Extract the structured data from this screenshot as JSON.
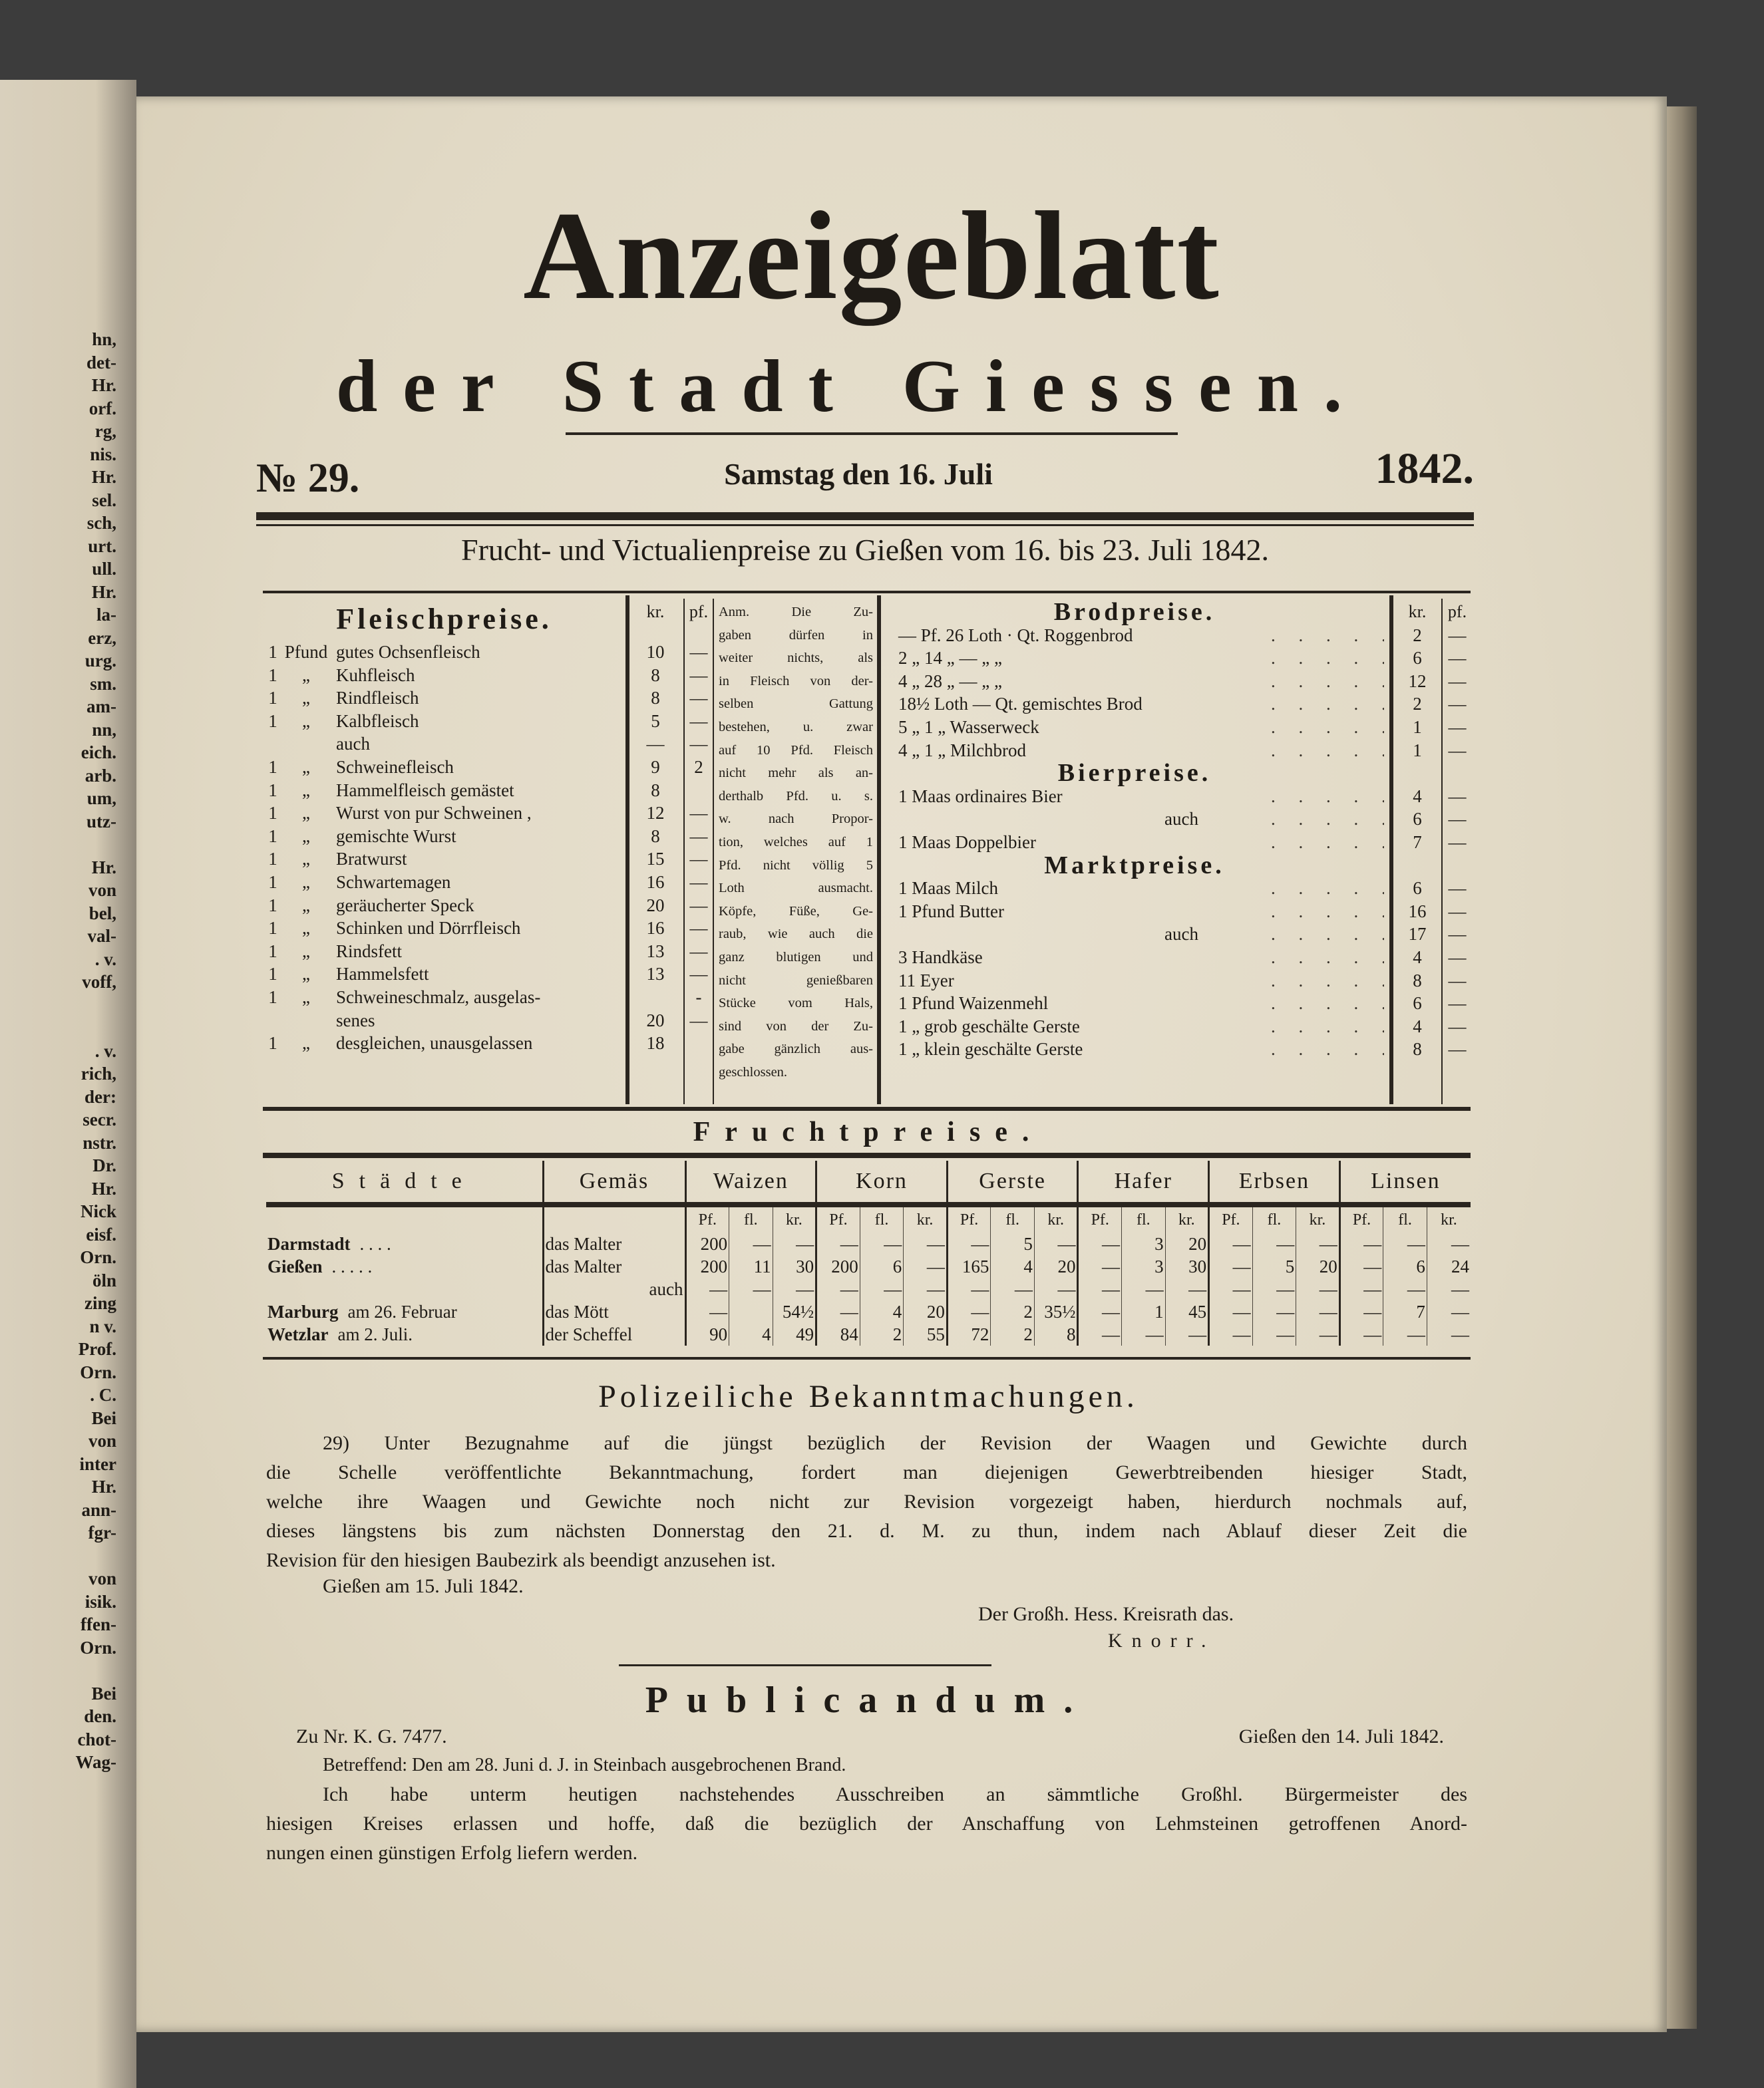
{
  "left_page_fragments": [
    "hn,",
    "det-",
    "Hr.",
    "orf.",
    "rg,",
    "nis.",
    "Hr.",
    "sel.",
    "sch,",
    "urt.",
    "ull.",
    "Hr.",
    "la-",
    "erz,",
    "urg.",
    "sm.",
    "am-",
    "nn,",
    "eich.",
    "arb.",
    "um,",
    "utz-",
    "",
    "Hr.",
    "von",
    "bel,",
    "val-",
    ". v.",
    "voff,",
    "",
    "",
    ". v.",
    "rich,",
    "der:",
    "secr.",
    "nstr.",
    "Dr.",
    "Hr.",
    "Nick",
    "eisf.",
    "Orn.",
    "öln",
    "zing",
    "n v.",
    "Prof.",
    "Orn.",
    ". C.",
    "Bei",
    "von",
    "inter",
    "Hr.",
    "ann-",
    "fgr-",
    "",
    "von",
    "isik.",
    "ffen-",
    "Orn.",
    "",
    "Bei",
    "den.",
    "chot-",
    "Wag-"
  ],
  "masthead": {
    "title": "Anzeigeblatt",
    "subtitle": "der Stadt Giessen.",
    "number": "№ 29.",
    "date": "Samstag den 16. Juli",
    "year": "1842."
  },
  "prices_heading": "Frucht- und Victualienpreise zu Gießen vom 16. bis 23. Juli 1842.",
  "meat": {
    "heading": "Fleischpreise.",
    "col_kr": "kr.",
    "col_pf": "pf.",
    "rows": [
      {
        "qty": "1",
        "unit": "Pfund",
        "item": "gutes Ochsenfleisch",
        "kr": "10",
        "pf": "—"
      },
      {
        "qty": "1",
        "unit": "„",
        "item": "Kuhfleisch",
        "kr": "8",
        "pf": "—"
      },
      {
        "qty": "1",
        "unit": "„",
        "item": "Rindfleisch",
        "kr": "8",
        "pf": "—"
      },
      {
        "qty": "1",
        "unit": "„",
        "item": "Kalbfleisch",
        "kr": "5",
        "pf": "—"
      },
      {
        "qty": "",
        "unit": "",
        "item": "auch",
        "kr": "—",
        "pf": "—"
      },
      {
        "qty": "1",
        "unit": "„",
        "item": "Schweinefleisch",
        "kr": "9",
        "pf": "2"
      },
      {
        "qty": "1",
        "unit": "„",
        "item": "Hammelfleisch gemästet",
        "kr": "8",
        "pf": ""
      },
      {
        "qty": "1",
        "unit": "„",
        "item": "Wurst von pur Schweinen ,",
        "kr": "12",
        "pf": "—"
      },
      {
        "qty": "1",
        "unit": "„",
        "item": "gemischte Wurst",
        "kr": "8",
        "pf": "—"
      },
      {
        "qty": "1",
        "unit": "„",
        "item": "Bratwurst",
        "kr": "15",
        "pf": "—"
      },
      {
        "qty": "1",
        "unit": "„",
        "item": "Schwartemagen",
        "kr": "16",
        "pf": "—"
      },
      {
        "qty": "1",
        "unit": "„",
        "item": "geräucherter Speck",
        "kr": "20",
        "pf": "—"
      },
      {
        "qty": "1",
        "unit": "„",
        "item": "Schinken und Dörrfleisch",
        "kr": "16",
        "pf": "—"
      },
      {
        "qty": "1",
        "unit": "„",
        "item": "Rindsfett",
        "kr": "13",
        "pf": "—"
      },
      {
        "qty": "1",
        "unit": "„",
        "item": "Hammelsfett",
        "kr": "13",
        "pf": "—"
      },
      {
        "qty": "1",
        "unit": "„",
        "item": "Schweineschmalz, ausgelas-",
        "kr": "",
        "pf": "-"
      },
      {
        "qty": "",
        "unit": "",
        "item": "senes",
        "kr": "20",
        "pf": "—"
      },
      {
        "qty": "1",
        "unit": "„",
        "item": "desgleichen, unausgelassen",
        "kr": "18",
        "pf": ""
      }
    ]
  },
  "note_lines": [
    "Anm. Die Zu-",
    "gaben dürfen in",
    "weiter nichts, als",
    "in Fleisch von der-",
    "selben Gattung",
    "bestehen, u. zwar",
    "auf 10 Pfd. Fleisch",
    "nicht mehr als an-",
    "derthalb Pfd. u. s.",
    "w. nach Propor-",
    "tion, welches auf 1",
    "Pfd. nicht völlig 5",
    "Loth ausmacht.",
    "Köpfe, Füße, Ge-",
    "raub, wie auch die",
    "ganz blutigen und",
    "nicht genießbaren",
    "Stücke vom Hals,",
    "sind von der Zu-",
    "gabe gänzlich aus-",
    "geschlossen."
  ],
  "right_prices": {
    "col_kr": "kr.",
    "col_pf": "pf.",
    "rows": [
      {
        "heading": "Brodpreise."
      },
      {
        "item": "— Pf. 26 Loth · Qt. Roggenbrod",
        "kr": "2",
        "pf": "—"
      },
      {
        "item": "2 „ 14 „ — „ „",
        "kr": "6",
        "pf": "—"
      },
      {
        "item": "4 „ 28 „ — „ „",
        "kr": "12",
        "pf": "—"
      },
      {
        "item": "18½ Loth — Qt. gemischtes Brod",
        "kr": "2",
        "pf": "—"
      },
      {
        "item": "5 „ 1 „ Wasserweck",
        "kr": "1",
        "pf": "—"
      },
      {
        "item": "4 „ 1 „ Milchbrod",
        "kr": "1",
        "pf": "—"
      },
      {
        "heading": "Bierpreise."
      },
      {
        "item": "1 Maas ordinaires Bier",
        "kr": "4",
        "pf": "—"
      },
      {
        "item": "auch",
        "kr": "6",
        "pf": "—",
        "indent": true
      },
      {
        "item": "1 Maas Doppelbier",
        "kr": "7",
        "pf": "—"
      },
      {
        "heading": "Marktpreise."
      },
      {
        "item": "1 Maas Milch",
        "kr": "6",
        "pf": "—"
      },
      {
        "item": "1 Pfund Butter",
        "kr": "16",
        "pf": "—"
      },
      {
        "item": "auch",
        "kr": "17",
        "pf": "—",
        "indent": true
      },
      {
        "item": "3 Handkäse",
        "kr": "4",
        "pf": "—"
      },
      {
        "item": "11 Eyer",
        "kr": "8",
        "pf": "—"
      },
      {
        "item": "1 Pfund Waizenmehl",
        "kr": "6",
        "pf": "—"
      },
      {
        "item": "1 „ grob geschälte Gerste",
        "kr": "4",
        "pf": "—"
      },
      {
        "item": "1 „ klein geschälte Gerste",
        "kr": "8",
        "pf": "—"
      }
    ]
  },
  "grain": {
    "heading": "Fruchtpreise.",
    "col_city": "Städte",
    "col_measure": "Gemäs",
    "grains": [
      "Waizen",
      "Korn",
      "Gerste",
      "Hafer",
      "Erbsen",
      "Linsen"
    ],
    "sub": [
      "Pf.",
      "fl.",
      "kr."
    ],
    "rows": [
      {
        "city": "Darmstadt",
        "dots": ". . . .",
        "measure": "das Malter",
        "v": [
          "200",
          "—",
          "—",
          "—",
          "—",
          "—",
          "—",
          "5",
          "—",
          "—",
          "3",
          "20",
          "—",
          "—",
          "—",
          "—",
          "—",
          "—"
        ]
      },
      {
        "city": "Gießen",
        "dots": ". . . . .",
        "measure": "das Malter",
        "v": [
          "200",
          "11",
          "30",
          "200",
          "6",
          "—",
          "165",
          "4",
          "20",
          "—",
          "3",
          "30",
          "—",
          "5",
          "20",
          "—",
          "6",
          "24"
        ]
      },
      {
        "city": "",
        "dots": "",
        "measure": "auch",
        "v": [
          "—",
          "—",
          "—",
          "—",
          "—",
          "—",
          "—",
          "—",
          "—",
          "—",
          "—",
          "—",
          "—",
          "—",
          "—",
          "—",
          "—",
          "—"
        ]
      },
      {
        "city": "Marburg",
        "dots": "am 26. Februar",
        "measure": "das Mött",
        "v": [
          "—",
          "",
          "54½",
          "—",
          "4",
          "20",
          "—",
          "2",
          "35½",
          "—",
          "1",
          "45",
          "—",
          "—",
          "—",
          "—",
          "7",
          "—"
        ]
      },
      {
        "city": "Wetzlar",
        "dots": "am 2. Juli.",
        "measure": "der Scheffel",
        "v": [
          "90",
          "4",
          "49",
          "84",
          "2",
          "55",
          "72",
          "2",
          "8",
          "—",
          "—",
          "—",
          "—",
          "—",
          "—",
          "—",
          "—",
          "—"
        ]
      }
    ]
  },
  "police": {
    "heading": "Polizeiliche Bekanntmachungen.",
    "lines": [
      "29) Unter Bezugnahme auf die jüngst bezüglich der Revision der Waagen und Gewichte durch",
      "die Schelle veröffentlichte Bekanntmachung, fordert man diejenigen Gewerbtreibenden hiesiger Stadt,",
      "welche ihre Waagen und Gewichte noch nicht zur Revision vorgezeigt haben, hierdurch nochmals auf,",
      "dieses längstens bis zum nächsten Donnerstag den 21. d. M. zu thun, indem nach Ablauf dieser Zeit die",
      "Revision für den hiesigen Baubezirk als beendigt anzusehen ist."
    ],
    "date": "Gießen am 15. Juli 1842.",
    "signature": "Der Großh. Hess. Kreisrath das.",
    "name": "Knorr."
  },
  "publicandum": {
    "heading": "Publicandum.",
    "ref": "Zu Nr. K. G. 7477.",
    "date": "Gießen den 14. Juli 1842.",
    "subject": "Betreffend: Den am 28. Juni d. J. in Steinbach ausgebrochenen Brand.",
    "lines": [
      "Ich habe unterm heutigen nachstehendes Ausschreiben an sämmtliche Großhl. Bürgermeister des",
      "hiesigen Kreises erlassen und hoffe, daß die bezüglich der Anschaffung von Lehmsteinen getroffenen Anord-",
      "nungen einen günstigen Erfolg liefern werden."
    ]
  }
}
